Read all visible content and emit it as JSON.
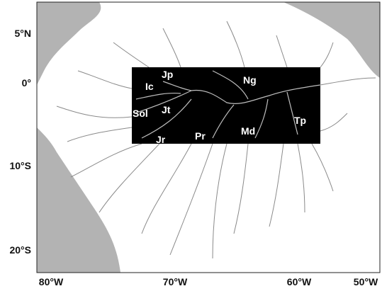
{
  "map": {
    "lat_labels": [
      "5°N",
      "0°",
      "10°S",
      "20°S"
    ],
    "lon_labels": [
      "80°W",
      "70°W",
      "60°W",
      "50°W"
    ],
    "region_labels": [
      "Jp",
      "Ic",
      "Ng",
      "Jt",
      "Sol",
      "Tp",
      "Md",
      "Jr",
      "Pr"
    ]
  }
}
